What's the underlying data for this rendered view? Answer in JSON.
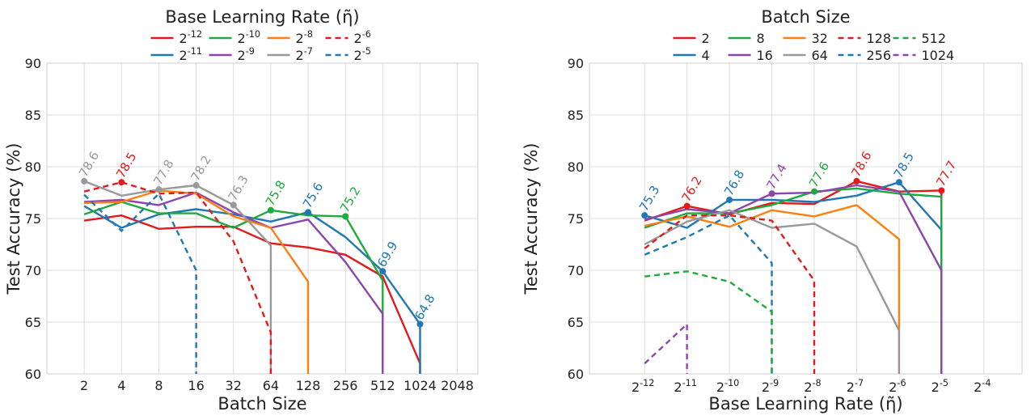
{
  "chart_data": [
    {
      "type": "line",
      "legend_title": "Base Learning Rate (η̃)",
      "xlabel": "Batch Size",
      "ylabel": "Test Accuracy (%)",
      "ylim": [
        60,
        90
      ],
      "yticks": [
        60,
        65,
        70,
        75,
        80,
        85,
        90
      ],
      "grid": true,
      "legend_placement": "top-center",
      "x_scale": "log2",
      "x_ticks": [
        {
          "v": 2,
          "label": "2"
        },
        {
          "v": 4,
          "label": "4"
        },
        {
          "v": 8,
          "label": "8"
        },
        {
          "v": 16,
          "label": "16"
        },
        {
          "v": 32,
          "label": "32"
        },
        {
          "v": 64,
          "label": "64"
        },
        {
          "v": 128,
          "label": "128"
        },
        {
          "v": 256,
          "label": "256"
        },
        {
          "v": 512,
          "label": "512"
        },
        {
          "v": 1024,
          "label": "1024"
        },
        {
          "v": 2048,
          "label": "2048"
        }
      ],
      "x_domain": [
        1,
        2048
      ],
      "series": [
        {
          "name": "2^-12",
          "legend_base": "2",
          "legend_exp": "-12",
          "color": "#e31a1c",
          "dashed": false,
          "x": [
            2,
            4,
            8,
            16,
            32,
            64,
            128,
            256,
            512,
            1024,
            1024
          ],
          "y": [
            74.8,
            75.3,
            74.0,
            74.2,
            74.2,
            72.6,
            72.2,
            71.5,
            69.4,
            61.0,
            59.0
          ],
          "peak": null
        },
        {
          "name": "2^-11",
          "legend_base": "2",
          "legend_exp": "-11",
          "color": "#1f78b4",
          "dashed": false,
          "x": [
            2,
            4,
            8,
            16,
            32,
            64,
            128,
            256,
            512,
            1024,
            1024
          ],
          "y": [
            76.2,
            74.1,
            75.4,
            75.9,
            75.4,
            74.7,
            75.6,
            73.2,
            69.9,
            64.8,
            59.0
          ],
          "peak": {
            "x": 1024,
            "y": 64.8,
            "label": "64.8"
          },
          "peaks": [
            {
              "x": 128,
              "y": 75.6,
              "label": "75.6"
            },
            {
              "x": 512,
              "y": 69.9,
              "label": "69.9"
            },
            {
              "x": 1024,
              "y": 64.8,
              "label": "64.8"
            }
          ]
        },
        {
          "name": "2^-10",
          "legend_base": "2",
          "legend_exp": "-10",
          "color": "#1faa3c",
          "dashed": false,
          "x": [
            2,
            4,
            8,
            16,
            32,
            64,
            128,
            256,
            512,
            512
          ],
          "y": [
            75.4,
            76.6,
            75.5,
            75.5,
            74.1,
            75.8,
            75.3,
            75.2,
            69.0,
            59.0
          ],
          "peaks": [
            {
              "x": 64,
              "y": 75.8,
              "label": "75.8"
            },
            {
              "x": 256,
              "y": 75.2,
              "label": "75.2"
            }
          ]
        },
        {
          "name": "2^-9",
          "legend_base": "2",
          "legend_exp": "-9",
          "color": "#8e44ad",
          "dashed": false,
          "x": [
            2,
            4,
            8,
            16,
            32,
            64,
            128,
            256,
            512,
            512
          ],
          "y": [
            76.6,
            76.8,
            76.3,
            77.5,
            75.6,
            74.1,
            74.9,
            70.8,
            65.8,
            59.0
          ],
          "peaks": []
        },
        {
          "name": "2^-8",
          "legend_base": "2",
          "legend_exp": "-8",
          "color": "#ff7f0e",
          "dashed": false,
          "x": [
            2,
            4,
            8,
            16,
            32,
            64,
            128,
            128
          ],
          "y": [
            76.5,
            76.6,
            77.7,
            77.4,
            75.2,
            74.1,
            68.9,
            59.0
          ],
          "peaks": []
        },
        {
          "name": "2^-7",
          "legend_base": "2",
          "legend_exp": "-7",
          "color": "#999999",
          "dashed": false,
          "x": [
            2,
            4,
            8,
            16,
            32,
            64,
            64
          ],
          "y": [
            78.6,
            77.2,
            77.8,
            78.2,
            76.3,
            72.4,
            59.0
          ],
          "peaks": [
            {
              "x": 2,
              "y": 78.6,
              "label": "78.6"
            },
            {
              "x": 8,
              "y": 77.8,
              "label": "77.8"
            },
            {
              "x": 16,
              "y": 78.2,
              "label": "78.2"
            },
            {
              "x": 32,
              "y": 76.3,
              "label": "76.3"
            }
          ]
        },
        {
          "name": "2^-6",
          "legend_base": "2",
          "legend_exp": "-6",
          "color": "#e31a1c",
          "dashed": true,
          "x": [
            2,
            4,
            8,
            16,
            32,
            64,
            64
          ],
          "y": [
            77.6,
            78.5,
            77.4,
            77.5,
            72.8,
            64.0,
            59.0
          ],
          "peaks": [
            {
              "x": 4,
              "y": 78.5,
              "label": "78.5"
            }
          ]
        },
        {
          "name": "2^-5",
          "legend_base": "2",
          "legend_exp": "-5",
          "color": "#1f78b4",
          "dashed": true,
          "x": [
            2,
            4,
            8,
            16,
            16
          ],
          "y": [
            77.3,
            73.8,
            77.4,
            70.0,
            59.0
          ],
          "peaks": []
        }
      ]
    },
    {
      "type": "line",
      "legend_title": "Batch Size",
      "xlabel": "Base Learning Rate (η̃)",
      "ylabel": "Test Accuracy (%)",
      "ylim": [
        60,
        90
      ],
      "yticks": [
        60,
        65,
        70,
        75,
        80,
        85,
        90
      ],
      "grid": true,
      "legend_placement": "top-center",
      "x_scale": "log2",
      "x_ticks": [
        {
          "v": -12,
          "label_base": "2",
          "label_exp": "-12"
        },
        {
          "v": -11,
          "label_base": "2",
          "label_exp": "-11"
        },
        {
          "v": -10,
          "label_base": "2",
          "label_exp": "-10"
        },
        {
          "v": -9,
          "label_base": "2",
          "label_exp": "-9"
        },
        {
          "v": -8,
          "label_base": "2",
          "label_exp": "-8"
        },
        {
          "v": -7,
          "label_base": "2",
          "label_exp": "-7"
        },
        {
          "v": -6,
          "label_base": "2",
          "label_exp": "-6"
        },
        {
          "v": -5,
          "label_base": "2",
          "label_exp": "-5"
        },
        {
          "v": -4,
          "label_base": "2",
          "label_exp": "-4"
        }
      ],
      "x_domain": [
        -13.3,
        -3.1
      ],
      "series": [
        {
          "name": "2",
          "color": "#e31a1c",
          "dashed": false,
          "x": [
            -12,
            -11,
            -10,
            -9,
            -8,
            -7,
            -6,
            -5,
            -5
          ],
          "y": [
            74.8,
            76.2,
            75.4,
            76.5,
            76.4,
            78.6,
            77.6,
            77.7,
            59.0
          ],
          "peaks": [
            {
              "x": -11,
              "y": 76.2,
              "label": "76.2"
            },
            {
              "x": -7,
              "y": 78.6,
              "label": "78.6"
            },
            {
              "x": -5,
              "y": 77.7,
              "label": "77.7"
            }
          ]
        },
        {
          "name": "4",
          "color": "#1f78b4",
          "dashed": false,
          "x": [
            -12,
            -11,
            -10,
            -9,
            -8,
            -7,
            -6,
            -5,
            -5
          ],
          "y": [
            75.3,
            74.1,
            76.8,
            76.8,
            76.6,
            77.2,
            78.5,
            73.9,
            59.0
          ],
          "peaks": [
            {
              "x": -12,
              "y": 75.3,
              "label": "75.3"
            },
            {
              "x": -10,
              "y": 76.8,
              "label": "76.8"
            },
            {
              "x": -6,
              "y": 78.5,
              "label": "78.5"
            }
          ]
        },
        {
          "name": "8",
          "color": "#1faa3c",
          "dashed": false,
          "x": [
            -12,
            -11,
            -10,
            -9,
            -8,
            -7,
            -6,
            -5,
            -5
          ],
          "y": [
            74.1,
            75.5,
            75.5,
            76.3,
            77.6,
            77.9,
            77.4,
            77.1,
            59.0
          ],
          "peaks": [
            {
              "x": -8,
              "y": 77.6,
              "label": "77.6"
            }
          ]
        },
        {
          "name": "16",
          "color": "#8e44ad",
          "dashed": false,
          "x": [
            -12,
            -11,
            -10,
            -9,
            -8,
            -7,
            -6,
            -5,
            -5
          ],
          "y": [
            74.9,
            75.9,
            75.5,
            77.4,
            77.5,
            78.2,
            77.6,
            70.0,
            59.0
          ],
          "peaks": [
            {
              "x": -9,
              "y": 77.4,
              "label": "77.4"
            }
          ]
        },
        {
          "name": "32",
          "color": "#ff7f0e",
          "dashed": false,
          "x": [
            -12,
            -11,
            -10,
            -9,
            -8,
            -7,
            -6,
            -6
          ],
          "y": [
            74.3,
            75.2,
            74.2,
            75.8,
            75.2,
            76.3,
            73.0,
            59.0
          ],
          "peaks": []
        },
        {
          "name": "64",
          "color": "#999999",
          "dashed": false,
          "x": [
            -12,
            -11,
            -10,
            -9,
            -8,
            -7,
            -6,
            -6
          ],
          "y": [
            72.5,
            74.7,
            75.8,
            74.1,
            74.5,
            72.3,
            64.2,
            59.0
          ],
          "peaks": []
        },
        {
          "name": "128",
          "color": "#e31a1c",
          "dashed": true,
          "x": [
            -12,
            -11,
            -10,
            -9,
            -8,
            -8
          ],
          "y": [
            72.1,
            75.3,
            75.3,
            74.8,
            69.0,
            59.0
          ],
          "peaks": []
        },
        {
          "name": "256",
          "color": "#1f78b4",
          "dashed": true,
          "x": [
            -12,
            -11,
            -10,
            -9,
            -9
          ],
          "y": [
            71.5,
            73.2,
            75.3,
            70.7,
            59.0
          ],
          "peaks": []
        },
        {
          "name": "512",
          "color": "#1faa3c",
          "dashed": true,
          "x": [
            -12,
            -11,
            -10,
            -9,
            -9
          ],
          "y": [
            69.4,
            69.9,
            68.9,
            66.0,
            59.0
          ],
          "peaks": []
        },
        {
          "name": "1024",
          "color": "#8e44ad",
          "dashed": true,
          "x": [
            -12,
            -11,
            -11
          ],
          "y": [
            61.0,
            64.8,
            59.0
          ],
          "peaks": []
        }
      ]
    }
  ]
}
